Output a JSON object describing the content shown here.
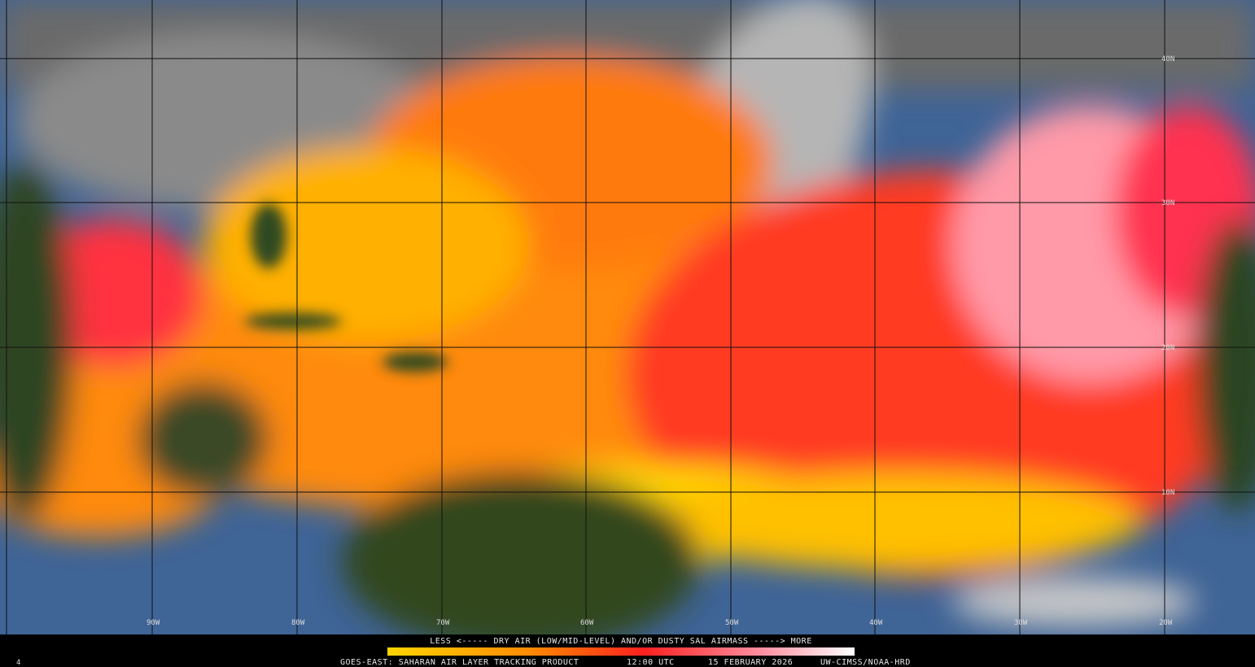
{
  "map": {
    "lat_labels": [
      "40N",
      "30N",
      "20N",
      "10N"
    ],
    "lon_labels": [
      "90W",
      "80W",
      "70W",
      "60W",
      "50W",
      "40W",
      "30W",
      "20W"
    ]
  },
  "legend": {
    "text": "LESS <----- DRY AIR (LOW/MID-LEVEL) AND/OR DUSTY SAL AIRMASS -----> MORE"
  },
  "footer": {
    "product": "GOES-EAST: SAHARAN AIR LAYER TRACKING PRODUCT",
    "time": "12:00 UTC",
    "date": "15 FEBRUARY 2026",
    "credit": "UW-CIMSS/NOAA-HRD"
  },
  "corner_label": "4"
}
